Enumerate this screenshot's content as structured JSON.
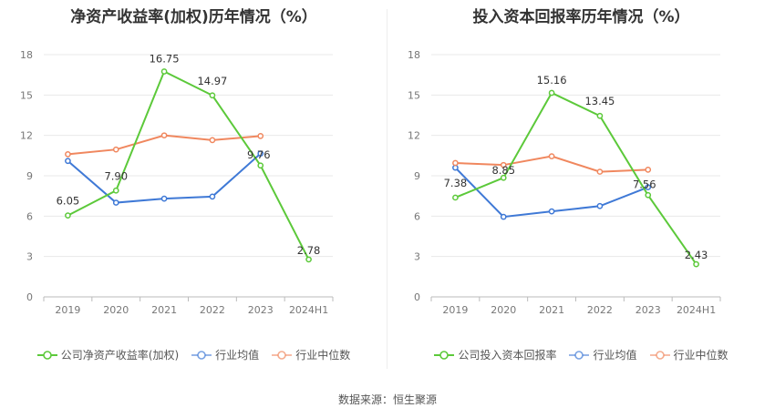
{
  "chart_data": [
    {
      "type": "line",
      "title": "净资产收益率(加权)历年情况（%）",
      "categories": [
        "2019",
        "2020",
        "2021",
        "2022",
        "2023",
        "2024H1"
      ],
      "ylim": [
        0,
        18
      ],
      "yticks": [
        0,
        3,
        6,
        9,
        12,
        15,
        18
      ],
      "grid": true,
      "legend_placement": "bottom",
      "series": [
        {
          "name": "公司净资产收益率(加权)",
          "color": "#5cc93a",
          "values": [
            6.05,
            7.9,
            16.75,
            14.97,
            9.76,
            2.78
          ],
          "labels": [
            "6.05",
            "7.90",
            "16.75",
            "14.97",
            "9.76",
            "2.78"
          ]
        },
        {
          "name": "行业均值",
          "color": "#3f79d6",
          "values": [
            10.1,
            7.0,
            7.3,
            7.45,
            10.65,
            null
          ]
        },
        {
          "name": "行业中位数",
          "color": "#f0875e",
          "values": [
            10.6,
            10.95,
            12.0,
            11.65,
            11.95,
            null
          ]
        }
      ]
    },
    {
      "type": "line",
      "title": "投入资本回报率历年情况（%）",
      "categories": [
        "2019",
        "2020",
        "2021",
        "2022",
        "2023",
        "2024H1"
      ],
      "ylim": [
        0,
        18
      ],
      "yticks": [
        0,
        3,
        6,
        9,
        12,
        15,
        18
      ],
      "grid": true,
      "legend_placement": "bottom",
      "series": [
        {
          "name": "公司投入资本回报率",
          "color": "#5cc93a",
          "values": [
            7.38,
            8.85,
            15.16,
            13.45,
            7.56,
            2.43
          ],
          "labels": [
            "7.38",
            "8.85",
            "15.16",
            "13.45",
            "7.56",
            "2.43"
          ]
        },
        {
          "name": "行业均值",
          "color": "#3f79d6",
          "values": [
            9.6,
            5.95,
            6.35,
            6.75,
            8.15,
            null
          ]
        },
        {
          "name": "行业中位数",
          "color": "#f0875e",
          "values": [
            9.95,
            9.8,
            10.45,
            9.3,
            9.45,
            null
          ]
        }
      ]
    }
  ],
  "source": "数据来源：恒生聚源"
}
